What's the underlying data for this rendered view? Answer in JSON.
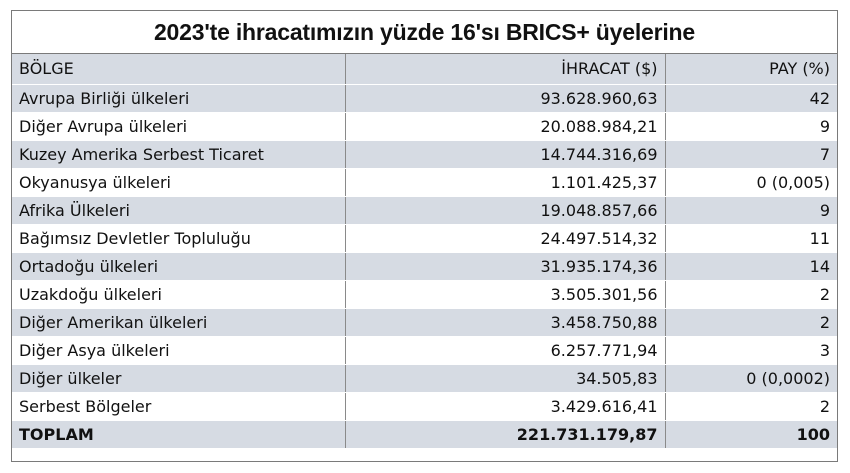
{
  "title": "2023'te ihracatımızın yüzde 16'sı BRICS+ üyelerine",
  "table": {
    "headers": [
      "BÖLGE",
      "İHRACAT ($)",
      "PAY (%)"
    ],
    "rows": [
      [
        "Avrupa Birliği ülkeleri",
        "93.628.960,63",
        "42"
      ],
      [
        "Diğer Avrupa ülkeleri",
        "20.088.984,21",
        "9"
      ],
      [
        "Kuzey Amerika Serbest Ticaret",
        "14.744.316,69",
        "7"
      ],
      [
        "Okyanusya ülkeleri",
        "1.101.425,37",
        "0 (0,005)"
      ],
      [
        "Afrika Ülkeleri",
        "19.048.857,66",
        "9"
      ],
      [
        "Bağımsız Devletler Topluluğu",
        "24.497.514,32",
        "11"
      ],
      [
        "Ortadoğu ülkeleri",
        "31.935.174,36",
        "14"
      ],
      [
        "Uzakdoğu ülkeleri",
        "3.505.301,56",
        "2"
      ],
      [
        "Diğer Amerikan ülkeleri",
        "3.458.750,88",
        "2"
      ],
      [
        "Diğer Asya ülkeleri",
        "6.257.771,94",
        "3"
      ],
      [
        "Diğer ülkeler",
        "34.505,83",
        "0 (0,0002)"
      ],
      [
        "Serbest Bölgeler",
        "3.429.616,41",
        "2"
      ]
    ],
    "total": [
      "TOPLAM",
      "221.731.179,87",
      "100"
    ]
  },
  "colors": {
    "stripe": "#d6dbe3",
    "border": "#7a7a7a"
  }
}
